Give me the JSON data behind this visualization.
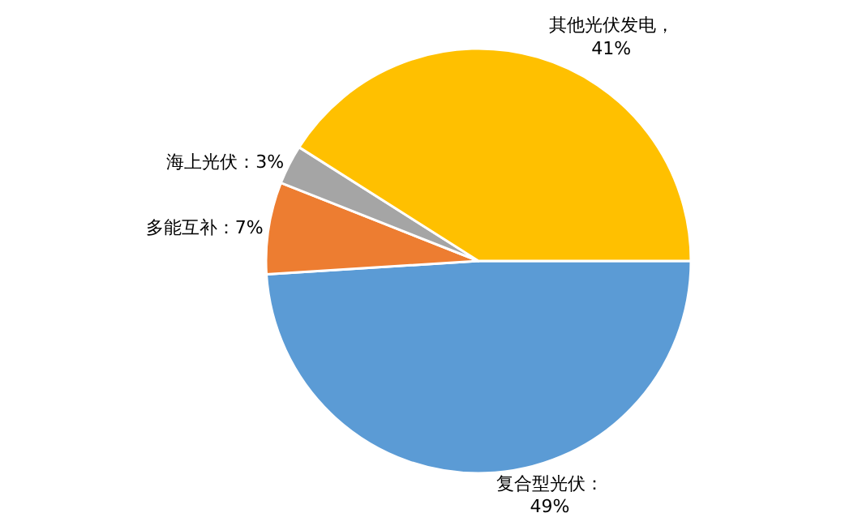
{
  "chart_data": {
    "type": "pie",
    "categories": [
      "复合型光伏",
      "多能互补",
      "海上光伏",
      "其他光伏发电"
    ],
    "values": [
      49,
      7,
      3,
      41
    ],
    "colors": [
      "#5b9bd5",
      "#ed7d31",
      "#a5a5a5",
      "#ffc000"
    ],
    "value_labels": [
      "：\n49%",
      "：7%",
      "：3%",
      "，\n41%"
    ],
    "legend": false
  }
}
